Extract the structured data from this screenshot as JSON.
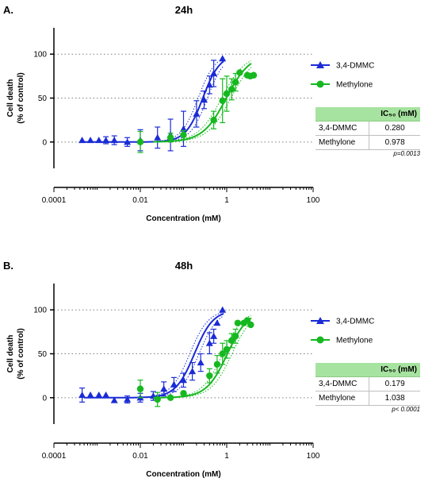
{
  "colors": {
    "dmmc": "#1a2bd6",
    "methylone": "#16b81f",
    "axis": "#000000",
    "grid": "#808080",
    "table_header_bg": "#a7e3a0"
  },
  "chart_data": [
    {
      "type": "scatter",
      "panel_letter": "A.",
      "title": "24h",
      "xlabel": "Concentration (mM)",
      "ylabel": [
        "Cell death",
        "(% of control)"
      ],
      "xscale": "log",
      "xlim": [
        0.0001,
        100
      ],
      "ylim": [
        -30,
        130
      ],
      "xticks": [
        "0.0001",
        "0.01",
        "1",
        "100"
      ],
      "yticks": [
        "0",
        "50",
        "100"
      ],
      "dotted_gridlines_y": [
        0,
        50,
        100
      ],
      "legend_placement": "right",
      "series": [
        {
          "name": "3,4-DMMC",
          "marker": "triangle",
          "x": [
            0.00045,
            0.0007,
            0.0011,
            0.0016,
            0.0025,
            0.005,
            0.01,
            0.025,
            0.05,
            0.1,
            0.2,
            0.3,
            0.4,
            0.5,
            0.8
          ],
          "y": [
            2,
            2,
            2,
            2,
            2,
            0,
            2,
            5,
            8,
            15,
            32,
            48,
            65,
            78,
            95
          ],
          "err": [
            0,
            0,
            0,
            4,
            5,
            5,
            12,
            12,
            18,
            20,
            15,
            10,
            10,
            15,
            0
          ],
          "ec50_mM": 0.28,
          "hill": 2.2
        },
        {
          "name": "Methylone",
          "marker": "circle",
          "x": [
            0.01,
            0.05,
            0.1,
            0.5,
            0.8,
            1.0,
            1.3,
            1.6,
            2.0,
            3.0,
            3.5,
            4.2
          ],
          "y": [
            0,
            5,
            8,
            25,
            47,
            55,
            60,
            68,
            79,
            76,
            75,
            76
          ],
          "err": [
            12,
            5,
            5,
            10,
            25,
            20,
            12,
            10,
            0,
            0,
            0,
            0
          ],
          "ec50_mM": 0.978,
          "hill": 1.6
        }
      ],
      "ic50_table": {
        "header": "IC₅₀ (mM)",
        "rows": [
          {
            "name": "3,4-DMMC",
            "value": "0.280"
          },
          {
            "name": "Methylone",
            "value": "0.978"
          }
        ],
        "p_value": "p=0.0013"
      }
    },
    {
      "type": "scatter",
      "panel_letter": "B.",
      "title": "48h",
      "xlabel": "Concentration (mM)",
      "ylabel": [
        "Cell death",
        "(% of control)"
      ],
      "xscale": "log",
      "xlim": [
        0.0001,
        100
      ],
      "ylim": [
        -30,
        130
      ],
      "xticks": [
        "0.0001",
        "0.01",
        "1",
        "100"
      ],
      "yticks": [
        "0",
        "50",
        "100"
      ],
      "dotted_gridlines_y": [
        0,
        50,
        100
      ],
      "legend_placement": "right",
      "series": [
        {
          "name": "3,4-DMMC",
          "marker": "triangle",
          "x": [
            0.00045,
            0.0007,
            0.0011,
            0.0016,
            0.0025,
            0.005,
            0.01,
            0.02,
            0.035,
            0.06,
            0.1,
            0.16,
            0.25,
            0.4,
            0.5,
            0.6,
            0.8
          ],
          "y": [
            3,
            3,
            3,
            3,
            -3,
            -2,
            0,
            2,
            10,
            15,
            20,
            30,
            40,
            62,
            70,
            85,
            100
          ],
          "err": [
            8,
            0,
            0,
            0,
            0,
            4,
            5,
            5,
            8,
            8,
            8,
            10,
            10,
            12,
            8,
            0,
            0
          ],
          "ec50_mM": 0.179,
          "hill": 2.0
        },
        {
          "name": "Methylone",
          "marker": "circle",
          "x": [
            0.01,
            0.025,
            0.05,
            0.1,
            0.4,
            0.6,
            0.8,
            1.0,
            1.3,
            1.6,
            1.8,
            2.5,
            3.0,
            3.6
          ],
          "y": [
            10,
            -2,
            0,
            5,
            25,
            38,
            50,
            55,
            65,
            70,
            85,
            85,
            88,
            83
          ],
          "err": [
            10,
            8,
            0,
            0,
            8,
            10,
            12,
            10,
            8,
            8,
            0,
            0,
            0,
            0
          ],
          "ec50_mM": 1.038,
          "hill": 1.8
        }
      ],
      "ic50_table": {
        "header": "IC₅₀ (mM)",
        "rows": [
          {
            "name": "3,4-DMMC",
            "value": "0.179"
          },
          {
            "name": "Methylone",
            "value": "1.038"
          }
        ],
        "p_value": "p< 0.0001"
      }
    }
  ]
}
